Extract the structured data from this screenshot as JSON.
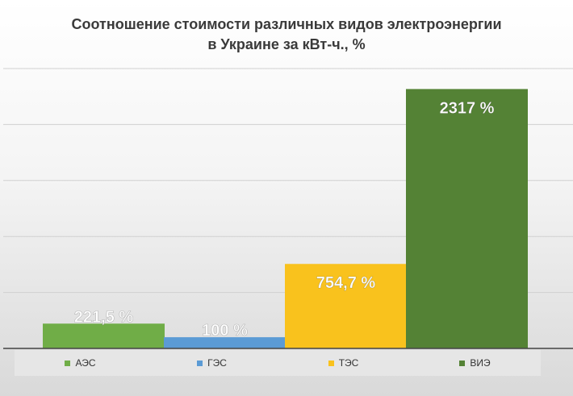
{
  "chart_data": {
    "type": "bar",
    "title_line1": "Соотношение  стоимости различных видов электроэнергии",
    "title_line2": "в Украине  за кВт-ч., %",
    "categories": [
      "АЭС",
      "ГЭС",
      "ТЭС",
      "ВИЭ"
    ],
    "values": [
      221.5,
      100,
      754.7,
      2317
    ],
    "data_labels": [
      "221,5 %",
      "100 %",
      "754,7 %",
      "2317 %"
    ],
    "colors": [
      "#70ad47",
      "#5b9bd5",
      "#f9c21d",
      "#548235"
    ],
    "ylim": [
      0,
      2500
    ],
    "grid": true,
    "legend_position": "bottom"
  }
}
